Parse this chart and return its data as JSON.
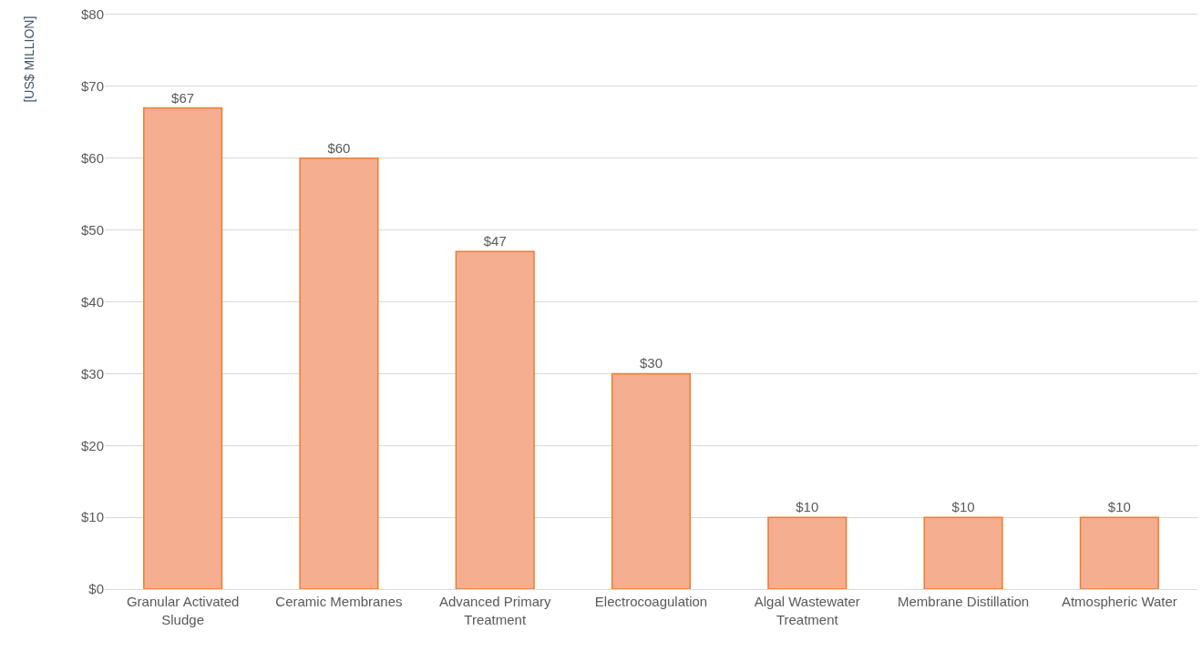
{
  "chart_data": {
    "type": "bar",
    "ylabel": "[US$ MILLION]",
    "categories": [
      "Granular Activated Sludge",
      "Ceramic Membranes",
      "Advanced Primary Treatment",
      "Electrocoagulation",
      "Algal Wastewater Treatment",
      "Membrane Distillation",
      "Atmospheric Water"
    ],
    "values": [
      67,
      60,
      47,
      30,
      10,
      10,
      10
    ],
    "value_labels": [
      "$67",
      "$60",
      "$47",
      "$30",
      "$10",
      "$10",
      "$10"
    ],
    "color": "#f5ae8f",
    "ylim": [
      0,
      80
    ],
    "yticks": [
      {
        "value": 0,
        "label": "$0"
      },
      {
        "value": 10,
        "label": "$10"
      },
      {
        "value": 20,
        "label": "$20"
      },
      {
        "value": 30,
        "label": "$30"
      },
      {
        "value": 40,
        "label": "$40"
      },
      {
        "value": 50,
        "label": "$50"
      },
      {
        "value": 60,
        "label": "$60"
      },
      {
        "value": 70,
        "label": "$70"
      },
      {
        "value": 80,
        "label": "$80"
      }
    ],
    "grid": "y",
    "legend": false
  }
}
